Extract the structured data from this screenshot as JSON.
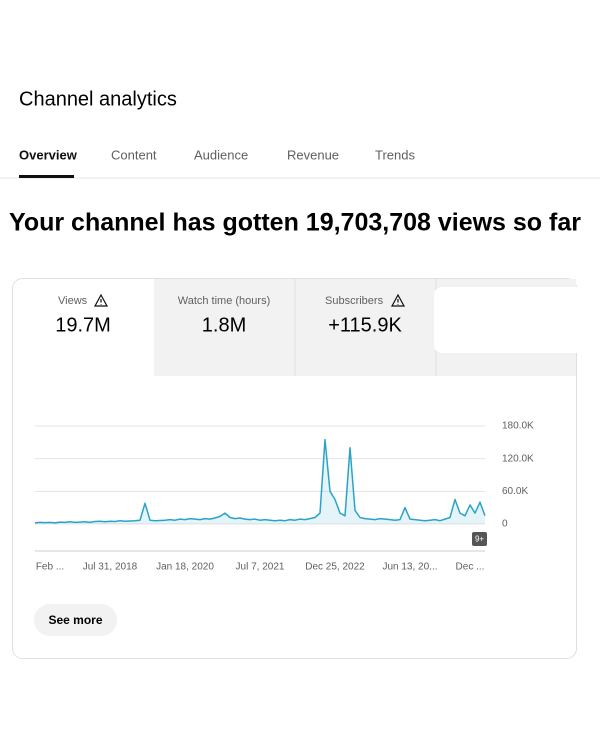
{
  "header": {
    "title": "Channel analytics"
  },
  "tabs": [
    "Overview",
    "Content",
    "Audience",
    "Revenue",
    "Trends"
  ],
  "headline": "Your channel has gotten 19,703,708 views so far",
  "metrics": [
    {
      "label": "Views",
      "value": "19.7M"
    },
    {
      "label": "Watch time (hours)",
      "value": "1.8M"
    },
    {
      "label": "Subscribers",
      "value": "+115.9K"
    }
  ],
  "chart_data": {
    "type": "line",
    "color": "#2ba3c8",
    "categories": [
      null,
      null,
      null,
      "Feb ...",
      null,
      null,
      null,
      null,
      null,
      null,
      null,
      null,
      null,
      null,
      null,
      "Jul 31, 2018",
      null,
      null,
      null,
      null,
      null,
      null,
      null,
      null,
      null,
      null,
      null,
      null,
      null,
      null,
      "Jan 18, 2020",
      null,
      null,
      null,
      null,
      null,
      null,
      null,
      null,
      null,
      null,
      null,
      null,
      null,
      null,
      "Jul 7, 2021",
      null,
      null,
      null,
      null,
      null,
      null,
      null,
      null,
      null,
      null,
      null,
      null,
      null,
      null,
      "Dec 25, 2022",
      null,
      null,
      null,
      null,
      null,
      null,
      null,
      null,
      null,
      null,
      null,
      null,
      null,
      null,
      "Jun 13, 20...",
      null,
      null,
      null,
      null,
      null,
      null,
      null,
      null,
      null,
      null,
      null,
      "Dec ...",
      null,
      null,
      null
    ],
    "values": [
      2000,
      3000,
      2500,
      3000,
      2000,
      3500,
      3000,
      4000,
      3000,
      3500,
      4000,
      3000,
      4500,
      5000,
      4000,
      5000,
      4500,
      6000,
      5000,
      5500,
      6000,
      7000,
      38000,
      7000,
      6000,
      6500,
      7000,
      8000,
      7000,
      9000,
      8000,
      10000,
      9000,
      8000,
      10000,
      9000,
      11000,
      14000,
      20000,
      12000,
      10000,
      11000,
      9000,
      8000,
      9000,
      7000,
      8000,
      7000,
      6000,
      7000,
      6000,
      8000,
      7000,
      9000,
      8000,
      10000,
      12000,
      20000,
      155000,
      60000,
      45000,
      20000,
      15000,
      140000,
      25000,
      12000,
      10000,
      9000,
      8000,
      10000,
      9000,
      8000,
      7000,
      8000,
      30000,
      9000,
      8000,
      7000,
      6000,
      7000,
      8000,
      6000,
      9000,
      12000,
      45000,
      20000,
      15000,
      35000,
      20000,
      40000,
      15000
    ],
    "ylim": [
      0,
      180000
    ],
    "yticks": [
      {
        "value": 0,
        "label": "0"
      },
      {
        "value": 60000,
        "label": "60.0K"
      },
      {
        "value": 120000,
        "label": "120.0K"
      },
      {
        "value": 180000,
        "label": "180.0K"
      }
    ],
    "grid": true,
    "badge": "9+"
  },
  "button": "See more"
}
